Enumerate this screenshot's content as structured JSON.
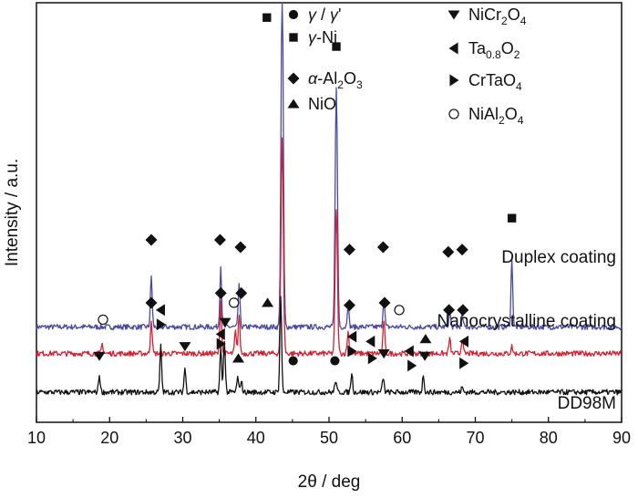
{
  "chart_data": {
    "type": "line",
    "title": "",
    "xlabel": "2θ / deg",
    "ylabel": "Intensity / a.u.",
    "xlim": [
      10,
      90
    ],
    "xticks": [
      10,
      20,
      30,
      40,
      50,
      60,
      70,
      80,
      90
    ],
    "xtick_labels": [
      "10",
      "20",
      "30",
      "40",
      "50",
      "60",
      "70",
      "80",
      "90"
    ],
    "series": [
      {
        "name": "Duplex coating",
        "color": "#4a4a9e",
        "baseline": 27,
        "peaks": [
          [
            25.7,
            21
          ],
          [
            35.2,
            25
          ],
          [
            37.7,
            18
          ],
          [
            43.6,
            145
          ],
          [
            51.0,
            100
          ],
          [
            52.6,
            9
          ],
          [
            57.5,
            12
          ],
          [
            66.5,
            6
          ],
          [
            68.2,
            5
          ],
          [
            75.0,
            28
          ]
        ]
      },
      {
        "name": "Nanocrystalline coating",
        "color": "#d42030",
        "baseline": 16,
        "peaks": [
          [
            19.0,
            4
          ],
          [
            25.7,
            14
          ],
          [
            35.2,
            22
          ],
          [
            37.2,
            9
          ],
          [
            37.7,
            16
          ],
          [
            43.6,
            90
          ],
          [
            51.0,
            60
          ],
          [
            52.6,
            9
          ],
          [
            57.5,
            14
          ],
          [
            66.5,
            6
          ],
          [
            68.2,
            6
          ],
          [
            75.0,
            3
          ]
        ]
      },
      {
        "name": "DD98M",
        "color": "#111111",
        "baseline": 0,
        "peaks": [
          [
            18.6,
            7
          ],
          [
            27.0,
            19
          ],
          [
            30.3,
            10
          ],
          [
            35.2,
            18
          ],
          [
            35.7,
            22
          ],
          [
            37.5,
            6
          ],
          [
            38.0,
            5
          ],
          [
            43.4,
            40
          ],
          [
            50.9,
            5
          ],
          [
            53.1,
            8
          ],
          [
            57.4,
            6
          ],
          [
            62.9,
            7
          ],
          [
            68.2,
            2
          ]
        ]
      }
    ],
    "legend": [
      {
        "symbol": "circle-filled",
        "label": "γ / γ'"
      },
      {
        "symbol": "square-filled",
        "label": "γ-Ni"
      },
      {
        "symbol": "diamond-filled",
        "label": "α-Al2O3"
      },
      {
        "symbol": "triangle-up",
        "label": "NiO"
      },
      {
        "symbol": "triangle-down",
        "label": "NiCr2O4"
      },
      {
        "symbol": "triangle-left",
        "label": "Ta0.8O2"
      },
      {
        "symbol": "triangle-right",
        "label": "CrTaO4"
      },
      {
        "symbol": "circle-open",
        "label": "NiAl2O4"
      }
    ],
    "legend_parts": [
      [
        {
          "t": "γ",
          "i": true
        },
        {
          "t": " / "
        },
        {
          "t": "γ",
          "i": true
        },
        {
          "t": "'"
        }
      ],
      [
        {
          "t": "γ",
          "i": true
        },
        {
          "t": "-Ni"
        }
      ],
      [
        {
          "t": "α",
          "i": true
        },
        {
          "t": "-Al"
        },
        {
          "t": "2",
          "sub": true
        },
        {
          "t": "O"
        },
        {
          "t": "3",
          "sub": true
        }
      ],
      [
        {
          "t": "NiO"
        }
      ],
      [
        {
          "t": "NiCr"
        },
        {
          "t": "2",
          "sub": true
        },
        {
          "t": "O"
        },
        {
          "t": "4",
          "sub": true
        }
      ],
      [
        {
          "t": "Ta"
        },
        {
          "t": "0.8",
          "sub": true
        },
        {
          "t": "O"
        },
        {
          "t": "2",
          "sub": true
        }
      ],
      [
        {
          "t": "CrTaO"
        },
        {
          "t": "4",
          "sub": true
        }
      ],
      [
        {
          "t": "NiAl"
        },
        {
          "t": "2",
          "sub": true
        },
        {
          "t": "O"
        },
        {
          "t": "4",
          "sub": true
        }
      ]
    ],
    "annotations": [
      {
        "sym": "square-filled",
        "x": 41.5,
        "y": 155
      },
      {
        "sym": "square-filled",
        "x": 51.0,
        "y": 143
      },
      {
        "sym": "square-filled",
        "x": 75.0,
        "y": 72
      },
      {
        "sym": "diamond-filled",
        "x": 25.7,
        "y": 63
      },
      {
        "sym": "diamond-filled",
        "x": 35.1,
        "y": 63
      },
      {
        "sym": "diamond-filled",
        "x": 37.9,
        "y": 60
      },
      {
        "sym": "diamond-filled",
        "x": 52.8,
        "y": 59
      },
      {
        "sym": "diamond-filled",
        "x": 57.4,
        "y": 60
      },
      {
        "sym": "diamond-filled",
        "x": 66.3,
        "y": 58
      },
      {
        "sym": "diamond-filled",
        "x": 68.2,
        "y": 59
      },
      {
        "sym": "diamond-filled",
        "x": 25.7,
        "y": 37
      },
      {
        "sym": "diamond-filled",
        "x": 35.2,
        "y": 41
      },
      {
        "sym": "diamond-filled",
        "x": 38.0,
        "y": 41
      },
      {
        "sym": "diamond-filled",
        "x": 52.8,
        "y": 36
      },
      {
        "sym": "diamond-filled",
        "x": 57.6,
        "y": 37
      },
      {
        "sym": "diamond-filled",
        "x": 66.4,
        "y": 34
      },
      {
        "sym": "diamond-filled",
        "x": 68.3,
        "y": 34
      },
      {
        "sym": "circle-open",
        "x": 19.1,
        "y": 30
      },
      {
        "sym": "circle-open",
        "x": 37.0,
        "y": 37
      },
      {
        "sym": "circle-open",
        "x": 59.6,
        "y": 34
      },
      {
        "sym": "triangle-down",
        "x": 18.6,
        "y": 15
      },
      {
        "sym": "triangle-down",
        "x": 30.3,
        "y": 19
      },
      {
        "sym": "triangle-down",
        "x": 35.8,
        "y": 29
      },
      {
        "sym": "triangle-down",
        "x": 57.5,
        "y": 16
      },
      {
        "sym": "triangle-down",
        "x": 63.1,
        "y": 15
      },
      {
        "sym": "triangle-left",
        "x": 27.0,
        "y": 34
      },
      {
        "sym": "triangle-left",
        "x": 35.2,
        "y": 24
      },
      {
        "sym": "triangle-left",
        "x": 53.2,
        "y": 23
      },
      {
        "sym": "triangle-left",
        "x": 55.7,
        "y": 21
      },
      {
        "sym": "triangle-left",
        "x": 61.0,
        "y": 17
      },
      {
        "sym": "triangle-left",
        "x": 68.5,
        "y": 21
      },
      {
        "sym": "triangle-right",
        "x": 27.0,
        "y": 28
      },
      {
        "sym": "triangle-right",
        "x": 35.2,
        "y": 20
      },
      {
        "sym": "triangle-right",
        "x": 53.1,
        "y": 17
      },
      {
        "sym": "triangle-right",
        "x": 55.9,
        "y": 14
      },
      {
        "sym": "triangle-right",
        "x": 61.3,
        "y": 11
      },
      {
        "sym": "triangle-right",
        "x": 68.4,
        "y": 12
      },
      {
        "sym": "triangle-up",
        "x": 41.6,
        "y": 37
      },
      {
        "sym": "triangle-up",
        "x": 37.6,
        "y": 14
      },
      {
        "sym": "triangle-up",
        "x": 63.2,
        "y": 22
      },
      {
        "sym": "circle-filled",
        "x": 45.1,
        "y": 13
      },
      {
        "sym": "circle-filled",
        "x": 50.8,
        "y": 13
      }
    ],
    "series_label_anchor": [
      "end",
      "end",
      "end"
    ]
  }
}
